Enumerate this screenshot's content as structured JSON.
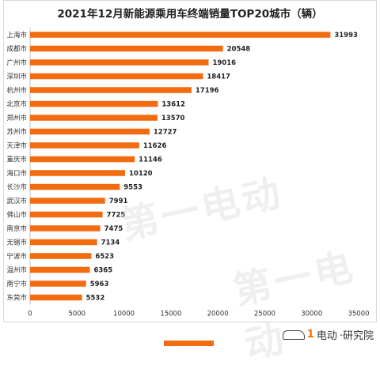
{
  "chart_data": {
    "type": "bar",
    "orientation": "horizontal",
    "title": "2021年12月新能源乘用车终端销量TOP20城市（辆）",
    "categories": [
      "上海市",
      "成都市",
      "广州市",
      "深圳市",
      "杭州市",
      "北京市",
      "郑州市",
      "苏州市",
      "天津市",
      "重庆市",
      "海口市",
      "长沙市",
      "武汉市",
      "佛山市",
      "南京市",
      "无锡市",
      "宁波市",
      "温州市",
      "南宁市",
      "东莞市"
    ],
    "values": [
      31993,
      20548,
      19016,
      18417,
      17196,
      13612,
      13570,
      12727,
      11626,
      11146,
      10120,
      9553,
      7991,
      7725,
      7475,
      7134,
      6523,
      6365,
      5963,
      5532
    ],
    "xlim": [
      0,
      35000
    ],
    "xticks": [
      0,
      5000,
      10000,
      15000,
      20000,
      25000,
      30000,
      35000
    ],
    "grid": false,
    "bar_color": "#f26b10"
  },
  "watermark": "第一电动",
  "footer": {
    "logo_mark": "1",
    "logo_text": "电动",
    "logo_suffix": "·研究院"
  }
}
